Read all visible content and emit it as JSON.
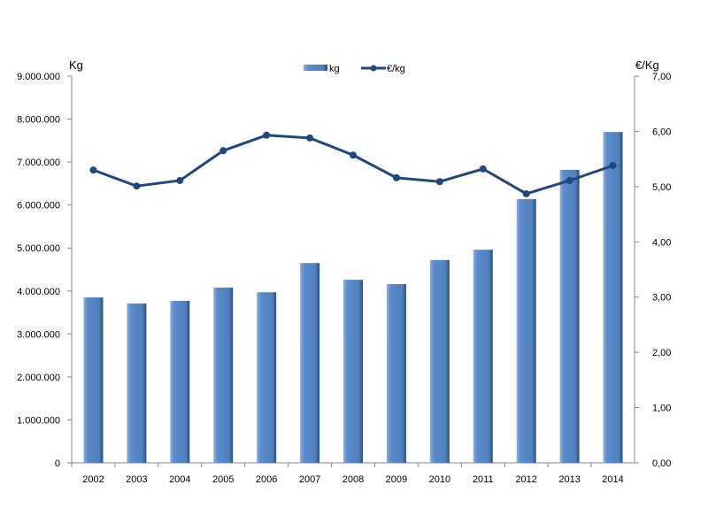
{
  "chart_data": {
    "type": "bar+line",
    "categories": [
      "2002",
      "2003",
      "2004",
      "2005",
      "2006",
      "2007",
      "2008",
      "2009",
      "2010",
      "2011",
      "2012",
      "2013",
      "2014"
    ],
    "series": [
      {
        "name": "kg",
        "type": "bar",
        "axis": "left",
        "color": "#4f81bd",
        "values": [
          3850000,
          3710000,
          3770000,
          4080000,
          3970000,
          4650000,
          4260000,
          4160000,
          4720000,
          4960000,
          6140000,
          6820000,
          7700000
        ]
      },
      {
        "name": "€/kg",
        "type": "line",
        "axis": "right",
        "color": "#1f497d",
        "values": [
          5.3,
          5.01,
          5.11,
          5.65,
          5.93,
          5.88,
          5.57,
          5.16,
          5.09,
          5.32,
          4.87,
          5.11,
          5.38
        ]
      }
    ],
    "ylabel_left": "Kg",
    "ylabel_right": "€/Kg",
    "ylim_left": [
      0,
      9000000
    ],
    "ylim_right": [
      0,
      7
    ],
    "yticks_left": [
      "0",
      "1.000.000",
      "2.000.000",
      "3.000.000",
      "4.000.000",
      "5.000.000",
      "6.000.000",
      "7.000.000",
      "8.000.000",
      "9.000.000"
    ],
    "yticks_right": [
      "0,00",
      "1,00",
      "2,00",
      "3,00",
      "4,00",
      "5,00",
      "6,00",
      "7,00"
    ],
    "legend": [
      "kg",
      "€/kg"
    ],
    "legend_position": "top-center",
    "grid": false
  }
}
